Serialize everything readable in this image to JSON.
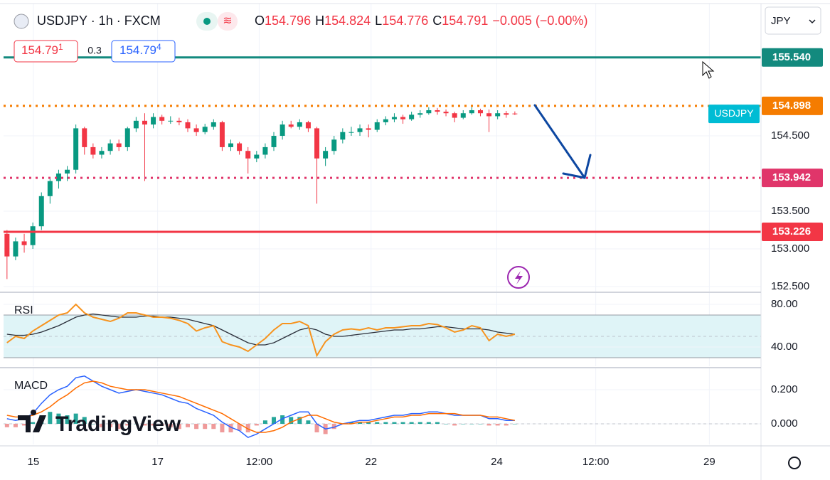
{
  "header": {
    "symbol": "USDJPY · 1h · FXCM",
    "open_label": "O",
    "open": "154.796",
    "high_label": "H",
    "high": "154.824",
    "low_label": "L",
    "low": "154.776",
    "close_label": "C",
    "close": "154.791",
    "change": "−0.005 (−0.00%)",
    "sell": "154.79",
    "sell_frac": "1",
    "spread": "0.3",
    "buy": "154.79",
    "buy_frac": "4",
    "currency": "JPY"
  },
  "logo": "TradingView",
  "chart_data": [
    {
      "type": "candlestick",
      "name": "USDJPY",
      "tag_color": "#00bcd4",
      "colors": [
        "#089981",
        "#f23645"
      ],
      "x": [
        0,
        1,
        2,
        3,
        4,
        5,
        6,
        7,
        8,
        9,
        10,
        11,
        12,
        13,
        14,
        15,
        16,
        17,
        18,
        19,
        20,
        21,
        22,
        23,
        24,
        25,
        26,
        27,
        28,
        29,
        30,
        31,
        32,
        33,
        34,
        35,
        36,
        37,
        38,
        39,
        40,
        41,
        42,
        43,
        44,
        45,
        46,
        47,
        48,
        49,
        50,
        51,
        52,
        53,
        54,
        55,
        56,
        57,
        58,
        59
      ],
      "candles": [
        [
          153.2,
          153.25,
          152.6,
          152.9
        ],
        [
          152.9,
          153.15,
          152.85,
          153.1
        ],
        [
          153.1,
          153.2,
          152.95,
          153.05
        ],
        [
          153.05,
          153.35,
          153.0,
          153.3
        ],
        [
          153.3,
          153.75,
          153.25,
          153.7
        ],
        [
          153.7,
          153.95,
          153.6,
          153.9
        ],
        [
          153.9,
          154.05,
          153.8,
          154.0
        ],
        [
          154.0,
          154.1,
          153.9,
          154.05
        ],
        [
          154.05,
          154.65,
          154.0,
          154.6
        ],
        [
          154.6,
          154.62,
          154.25,
          154.35
        ],
        [
          154.35,
          154.4,
          154.2,
          154.25
        ],
        [
          154.25,
          154.35,
          154.2,
          154.3
        ],
        [
          154.3,
          154.45,
          154.25,
          154.4
        ],
        [
          154.4,
          154.45,
          154.3,
          154.35
        ],
        [
          154.35,
          154.62,
          154.3,
          154.6
        ],
        [
          154.6,
          154.75,
          154.55,
          154.7
        ],
        [
          154.7,
          154.8,
          153.9,
          154.65
        ],
        [
          154.65,
          154.8,
          154.6,
          154.75
        ],
        [
          154.75,
          154.78,
          154.65,
          154.7
        ],
        [
          154.7,
          154.76,
          154.66,
          154.7
        ],
        [
          154.7,
          154.74,
          154.64,
          154.68
        ],
        [
          154.68,
          154.72,
          154.55,
          154.6
        ],
        [
          154.6,
          154.65,
          154.5,
          154.55
        ],
        [
          154.55,
          154.66,
          154.52,
          154.62
        ],
        [
          154.62,
          154.72,
          154.58,
          154.68
        ],
        [
          154.68,
          154.7,
          154.3,
          154.35
        ],
        [
          154.35,
          154.45,
          154.3,
          154.4
        ],
        [
          154.4,
          154.42,
          154.25,
          154.3
        ],
        [
          154.3,
          154.35,
          154.0,
          154.2
        ],
        [
          154.2,
          154.3,
          154.15,
          154.25
        ],
        [
          154.25,
          154.4,
          154.2,
          154.35
        ],
        [
          154.35,
          154.55,
          154.3,
          154.5
        ],
        [
          154.5,
          154.7,
          154.45,
          154.65
        ],
        [
          154.65,
          154.7,
          154.6,
          154.62
        ],
        [
          154.62,
          154.72,
          154.58,
          154.68
        ],
        [
          154.68,
          154.7,
          154.55,
          154.6
        ],
        [
          154.6,
          154.62,
          153.6,
          154.2
        ],
        [
          154.2,
          154.35,
          154.1,
          154.3
        ],
        [
          154.3,
          154.5,
          154.25,
          154.45
        ],
        [
          154.45,
          154.6,
          154.4,
          154.55
        ],
        [
          154.55,
          154.62,
          154.5,
          154.55
        ],
        [
          154.55,
          154.65,
          154.5,
          154.6
        ],
        [
          154.6,
          154.65,
          154.48,
          154.58
        ],
        [
          154.58,
          154.72,
          154.55,
          154.68
        ],
        [
          154.68,
          154.76,
          154.64,
          154.72
        ],
        [
          154.72,
          154.8,
          154.68,
          154.75
        ],
        [
          154.75,
          154.78,
          154.66,
          154.72
        ],
        [
          154.72,
          154.82,
          154.7,
          154.78
        ],
        [
          154.78,
          154.84,
          154.74,
          154.8
        ],
        [
          154.8,
          154.88,
          154.78,
          154.84
        ],
        [
          154.84,
          154.87,
          154.78,
          154.82
        ],
        [
          154.82,
          154.85,
          154.76,
          154.8
        ],
        [
          154.8,
          154.82,
          154.68,
          154.74
        ],
        [
          154.74,
          154.84,
          154.72,
          154.8
        ],
        [
          154.8,
          154.88,
          154.78,
          154.84
        ],
        [
          154.84,
          154.86,
          154.76,
          154.8
        ],
        [
          154.8,
          154.85,
          154.55,
          154.76
        ],
        [
          154.76,
          154.84,
          154.72,
          154.8
        ],
        [
          154.8,
          154.83,
          154.74,
          154.78
        ],
        [
          154.796,
          154.824,
          154.776,
          154.791
        ]
      ],
      "xlim": [
        -0.4,
        87.6
      ],
      "ylim": [
        152.434,
        156.255
      ],
      "yticks": [
        {
          "value": 154.5,
          "label": "154.500"
        },
        {
          "value": 153.5,
          "label": "153.500"
        },
        {
          "value": 153.0,
          "label": "153.000"
        },
        {
          "value": 152.5,
          "label": "152.500"
        }
      ],
      "levels": [
        {
          "value": 155.54,
          "label": "155.540",
          "color": "#138a7e",
          "style": "solid"
        },
        {
          "value": 154.898,
          "label": "154.898",
          "color": "#f57c00",
          "style": "dotted"
        },
        {
          "value": 153.942,
          "label": "153.942",
          "color": "#e0356a",
          "style": "dotted"
        },
        {
          "value": 153.226,
          "label": "153.226",
          "color": "#f23645",
          "style": "solid"
        }
      ],
      "grid": true
    },
    {
      "type": "line",
      "title": "RSI",
      "x": [
        0,
        1,
        2,
        3,
        4,
        5,
        6,
        7,
        8,
        9,
        10,
        11,
        12,
        13,
        14,
        15,
        16,
        17,
        18,
        19,
        20,
        21,
        22,
        23,
        24,
        25,
        26,
        27,
        28,
        29,
        30,
        31,
        32,
        33,
        34,
        35,
        36,
        37,
        38,
        39,
        40,
        41,
        42,
        43,
        44,
        45,
        46,
        47,
        48,
        49,
        50,
        51,
        52,
        53,
        54,
        55,
        56,
        57,
        58,
        59
      ],
      "series": [
        {
          "color": "#f7931e",
          "values": [
            44,
            50,
            48,
            55,
            60,
            65,
            70,
            72,
            80,
            72,
            68,
            66,
            64,
            67,
            72,
            72,
            70,
            68,
            68,
            67,
            65,
            62,
            55,
            58,
            60,
            45,
            42,
            40,
            36,
            42,
            48,
            56,
            62,
            62,
            64,
            60,
            32,
            45,
            52,
            56,
            57,
            56,
            58,
            56,
            58,
            58,
            59,
            60,
            60,
            62,
            61,
            58,
            54,
            56,
            60,
            58,
            46,
            52,
            50,
            52
          ]
        },
        {
          "color": "#2a2e39",
          "values": [
            52,
            51,
            51,
            52,
            54,
            57,
            60,
            64,
            68,
            70,
            71,
            70,
            69,
            68,
            68,
            68,
            69,
            69,
            68,
            68,
            67,
            66,
            64,
            62,
            60,
            56,
            52,
            48,
            44,
            42,
            42,
            44,
            48,
            52,
            56,
            58,
            56,
            52,
            50,
            50,
            51,
            52,
            53,
            54,
            55,
            56,
            56,
            57,
            57,
            58,
            59,
            59,
            58,
            57,
            57,
            57,
            56,
            54,
            53,
            52
          ]
        }
      ],
      "band": [
        30,
        70
      ],
      "mid": 50,
      "band_color": "#dff4f7",
      "xlim": [
        -0.4,
        87.6
      ],
      "ylim": [
        22,
        90.67
      ],
      "yticks": [
        {
          "value": 80,
          "label": "80.00"
        },
        {
          "value": 40,
          "label": "40.00"
        }
      ],
      "grid": true
    },
    {
      "type": "macd",
      "title": "MACD",
      "x": [
        0,
        1,
        2,
        3,
        4,
        5,
        6,
        7,
        8,
        9,
        10,
        11,
        12,
        13,
        14,
        15,
        16,
        17,
        18,
        19,
        20,
        21,
        22,
        23,
        24,
        25,
        26,
        27,
        28,
        29,
        30,
        31,
        32,
        33,
        34,
        35,
        36,
        37,
        38,
        39,
        40,
        41,
        42,
        43,
        44,
        45,
        46,
        47,
        48,
        49,
        50,
        51,
        52,
        53,
        54,
        55,
        56,
        57,
        58,
        59
      ],
      "series": [
        {
          "color": "#2962ff",
          "values": [
            0.03,
            0.02,
            0.03,
            0.06,
            0.12,
            0.17,
            0.2,
            0.22,
            0.27,
            0.28,
            0.25,
            0.22,
            0.2,
            0.18,
            0.19,
            0.2,
            0.19,
            0.18,
            0.17,
            0.15,
            0.13,
            0.12,
            0.09,
            0.07,
            0.05,
            0.01,
            -0.02,
            -0.04,
            -0.08,
            -0.06,
            -0.03,
            0.0,
            0.03,
            0.05,
            0.07,
            0.07,
            0.0,
            -0.03,
            -0.02,
            0.0,
            0.01,
            0.02,
            0.02,
            0.03,
            0.04,
            0.05,
            0.05,
            0.06,
            0.06,
            0.07,
            0.07,
            0.06,
            0.05,
            0.05,
            0.05,
            0.05,
            0.03,
            0.03,
            0.02,
            0.02
          ]
        },
        {
          "color": "#ff6d00",
          "values": [
            0.05,
            0.04,
            0.04,
            0.05,
            0.07,
            0.1,
            0.14,
            0.17,
            0.21,
            0.24,
            0.25,
            0.24,
            0.22,
            0.21,
            0.2,
            0.2,
            0.2,
            0.19,
            0.18,
            0.17,
            0.16,
            0.14,
            0.12,
            0.1,
            0.08,
            0.06,
            0.03,
            0.0,
            -0.03,
            -0.05,
            -0.05,
            -0.04,
            -0.02,
            0.01,
            0.03,
            0.05,
            0.05,
            0.03,
            0.01,
            0.0,
            0.0,
            0.01,
            0.01,
            0.02,
            0.03,
            0.04,
            0.04,
            0.05,
            0.05,
            0.06,
            0.06,
            0.06,
            0.06,
            0.05,
            0.05,
            0.05,
            0.04,
            0.04,
            0.03,
            0.02
          ]
        }
      ],
      "histogram": {
        "colors": [
          "#26a69a",
          "#ef9a9a"
        ],
        "values": [
          -0.02,
          -0.02,
          -0.01,
          0.01,
          0.05,
          0.07,
          0.06,
          0.05,
          0.06,
          0.04,
          0,
          -0.02,
          -0.02,
          -0.03,
          -0.01,
          0,
          -0.01,
          -0.01,
          -0.01,
          -0.02,
          -0.03,
          -0.02,
          -0.03,
          -0.03,
          -0.03,
          -0.05,
          -0.05,
          -0.04,
          -0.05,
          -0.01,
          0.02,
          0.04,
          0.05,
          0.04,
          0.04,
          0.02,
          -0.05,
          -0.06,
          -0.03,
          0,
          0.01,
          0.01,
          0.01,
          0.01,
          0.01,
          0.01,
          0.01,
          0.01,
          0.01,
          0.01,
          0.01,
          0,
          -0.01,
          0,
          0,
          0,
          -0.01,
          -0.01,
          -0.01,
          0
        ]
      },
      "xlim": [
        -0.4,
        87.6
      ],
      "ylim": [
        -0.1208,
        0.325
      ],
      "yticks": [
        {
          "value": 0.2,
          "label": "0.200"
        },
        {
          "value": 0,
          "label": "0.000"
        }
      ],
      "xticks": [
        {
          "value": 3.06,
          "label": "15"
        },
        {
          "value": 17.5,
          "label": "17"
        },
        {
          "value": 29.3,
          "label": "12:00"
        },
        {
          "value": 42.3,
          "label": "22"
        },
        {
          "value": 56.9,
          "label": "24"
        },
        {
          "value": 68.4,
          "label": "12:00"
        },
        {
          "value": 81.6,
          "label": "29"
        }
      ],
      "grid": true
    }
  ]
}
